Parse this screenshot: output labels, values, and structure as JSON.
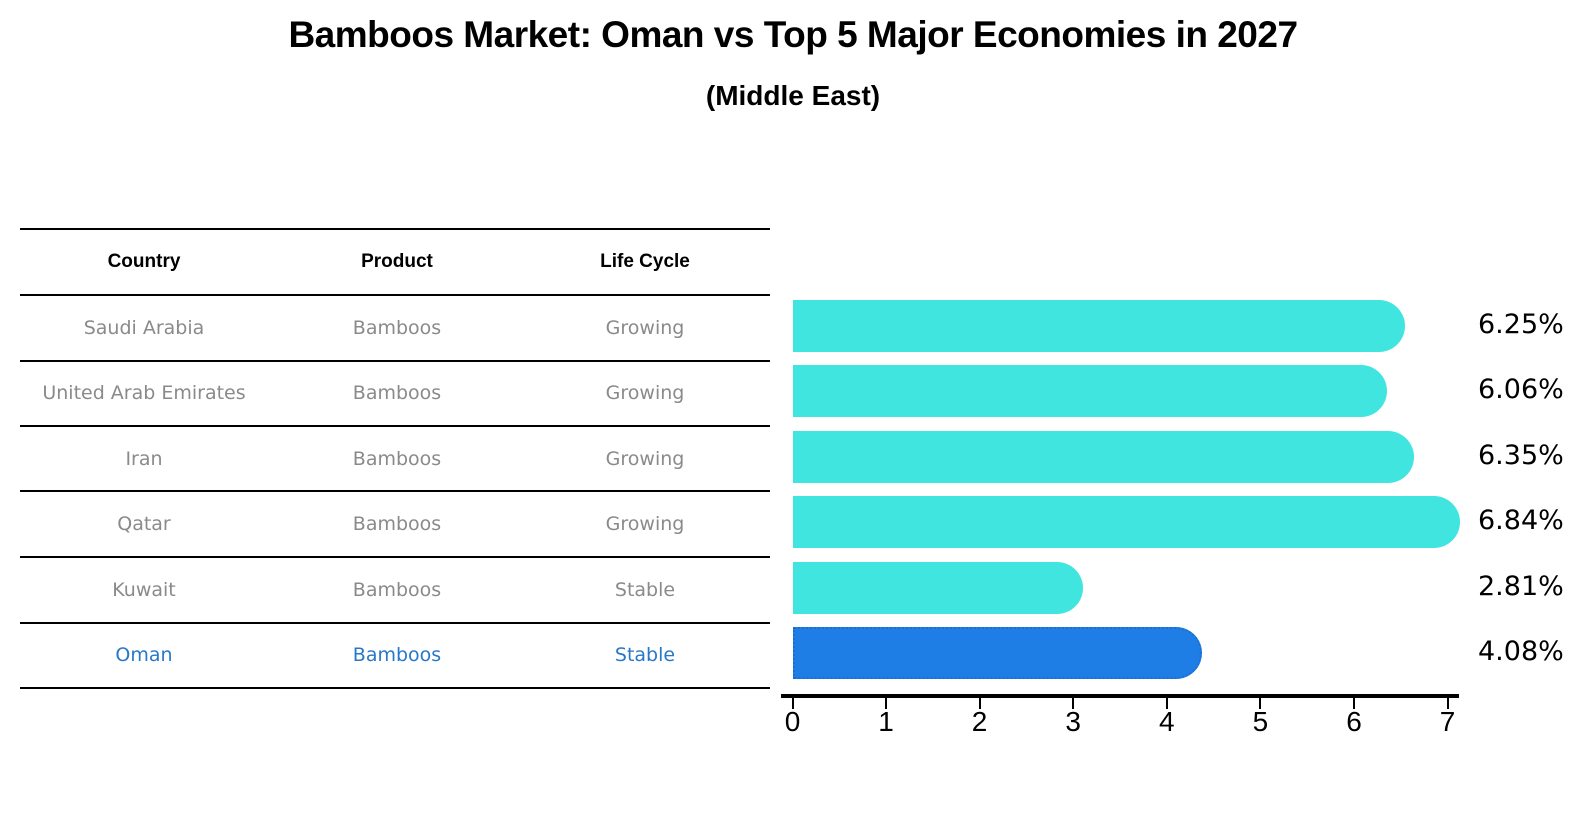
{
  "page": {
    "title": "Bamboos Market: Oman vs Top 5 Major Economies in 2027",
    "subtitle": "(Middle East)"
  },
  "table": {
    "headers": [
      "Country",
      "Product",
      "Life Cycle"
    ]
  },
  "chart_data": {
    "type": "bar",
    "orientation": "horizontal",
    "title": "Bamboos Market: Oman vs Top 5 Major Economies in 2027",
    "subtitle": "(Middle East)",
    "columns": [
      "Country",
      "Product",
      "Life Cycle"
    ],
    "rows": [
      {
        "country": "Saudi Arabia",
        "product": "Bamboos",
        "life_cycle": "Growing",
        "value": 6.25,
        "value_label": "6.25%",
        "highlighted": false
      },
      {
        "country": "United Arab Emirates",
        "product": "Bamboos",
        "life_cycle": "Growing",
        "value": 6.06,
        "value_label": "6.06%",
        "highlighted": false
      },
      {
        "country": "Iran",
        "product": "Bamboos",
        "life_cycle": "Growing",
        "value": 6.35,
        "value_label": "6.35%",
        "highlighted": false
      },
      {
        "country": "Qatar",
        "product": "Bamboos",
        "life_cycle": "Growing",
        "value": 6.84,
        "value_label": "6.84%",
        "highlighted": false
      },
      {
        "country": "Kuwait",
        "product": "Bamboos",
        "life_cycle": "Stable",
        "value": 2.81,
        "value_label": "2.81%",
        "highlighted": false
      },
      {
        "country": "Oman",
        "product": "Bamboos",
        "life_cycle": "Stable",
        "value": 4.08,
        "value_label": "4.08%",
        "highlighted": true
      }
    ],
    "xlim": [
      0,
      7
    ],
    "x_ticks": [
      "0",
      "1",
      "2",
      "3",
      "4",
      "5",
      "6",
      "7"
    ],
    "grid": false,
    "legend": null
  },
  "colors": {
    "bar_cyan": "#40E5DF",
    "bar_blue": "#1E7EE5",
    "bar_blue_border": "#1A6FD4",
    "text_gray": "#8A8A8A",
    "text_blue": "#2878C8",
    "axis_black": "#000000"
  }
}
